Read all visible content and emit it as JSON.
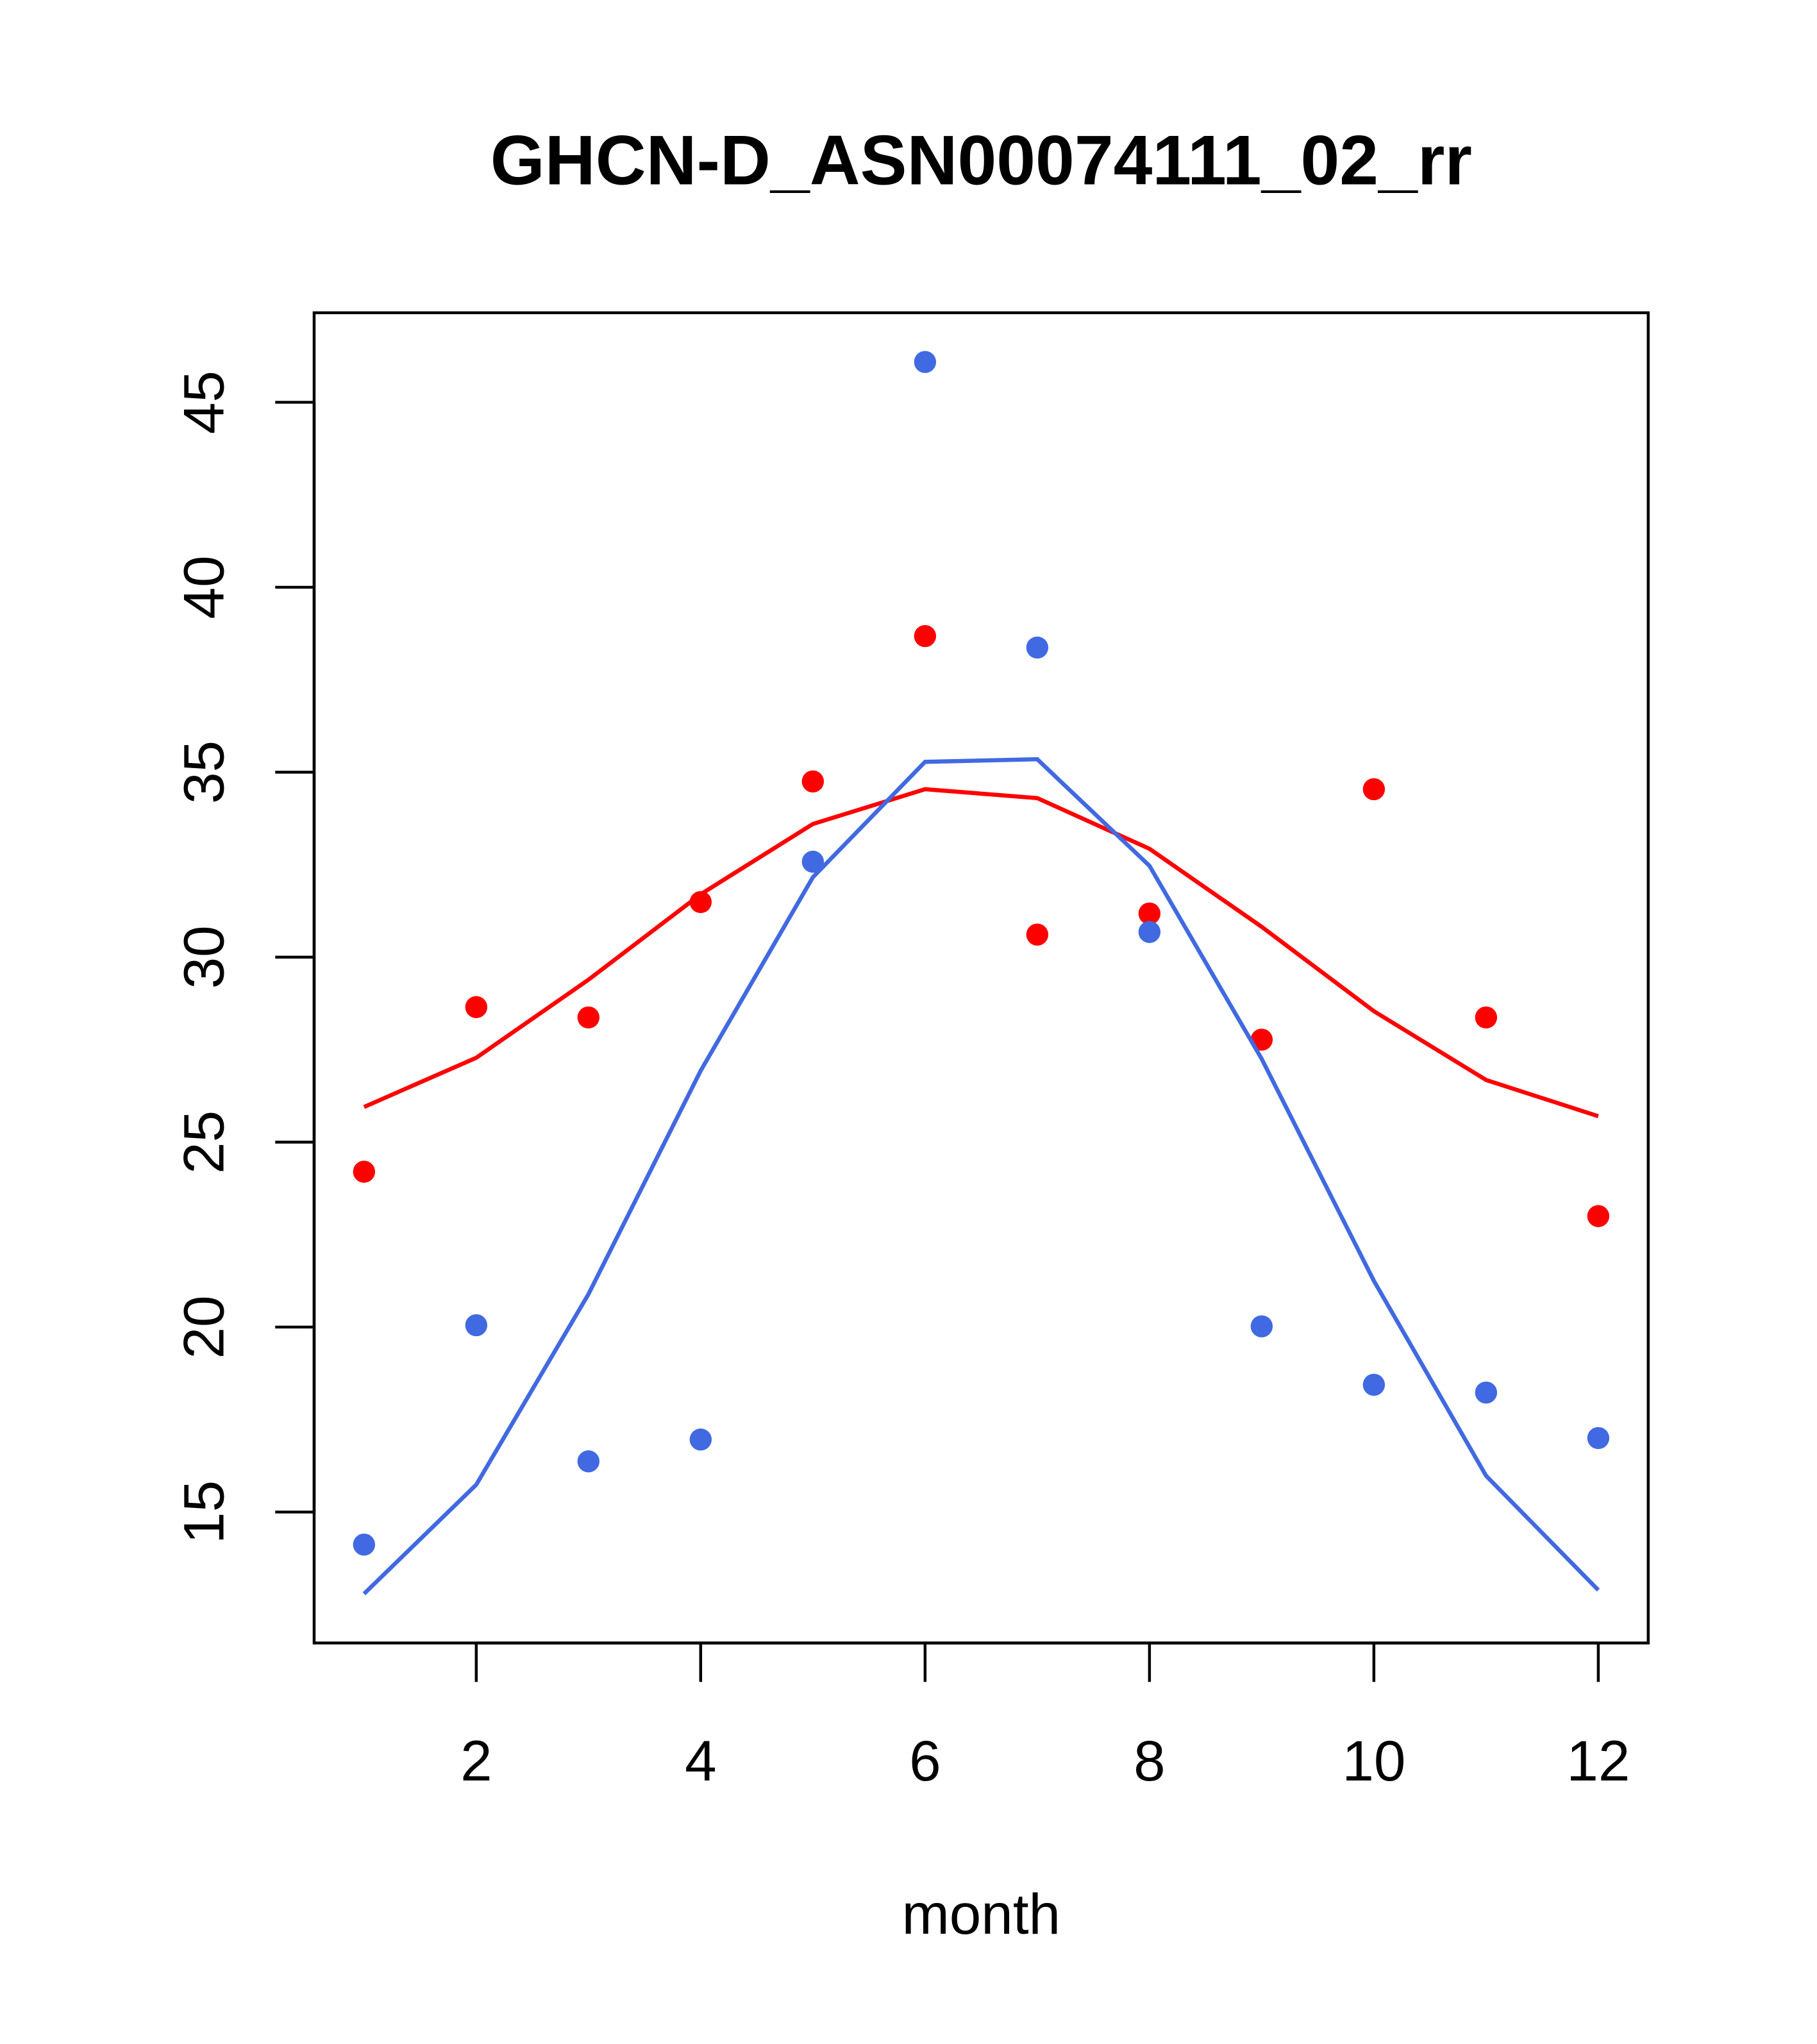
{
  "chart_data": {
    "type": "scatter",
    "title": "GHCN-D_ASN00074111_02_rr",
    "xlabel": "month",
    "ylabel": "",
    "xlim": [
      0.555,
      12.445
    ],
    "ylim": [
      11.46,
      47.42
    ],
    "x_ticks": [
      2,
      4,
      6,
      8,
      10,
      12
    ],
    "y_ticks": [
      15,
      20,
      25,
      30,
      35,
      40,
      45
    ],
    "grid": false,
    "x": [
      1,
      2,
      3,
      4,
      5,
      6,
      7,
      8,
      9,
      10,
      11,
      12
    ],
    "series": [
      {
        "name": "red points",
        "kind": "points",
        "color": "#ff0000",
        "values": [
          24.2,
          28.65,
          28.37,
          31.49,
          34.75,
          38.68,
          30.61,
          31.18,
          27.77,
          34.54,
          28.37,
          23.0
        ]
      },
      {
        "name": "red fit",
        "kind": "line",
        "color": "#ff0000",
        "values": [
          25.95,
          27.28,
          29.39,
          31.7,
          33.6,
          34.54,
          34.3,
          32.93,
          30.82,
          28.54,
          26.68,
          25.7
        ]
      },
      {
        "name": "blue points",
        "kind": "points",
        "color": "#4169e1",
        "values": [
          14.12,
          20.05,
          16.37,
          16.96,
          32.58,
          46.09,
          38.37,
          30.68,
          20.02,
          18.44,
          18.23,
          17.0
        ]
      },
      {
        "name": "blue fit",
        "kind": "line",
        "color": "#4169e1",
        "values": [
          12.79,
          15.74,
          20.89,
          26.93,
          32.16,
          35.28,
          35.35,
          32.47,
          27.25,
          21.25,
          15.98,
          12.89
        ]
      }
    ]
  }
}
